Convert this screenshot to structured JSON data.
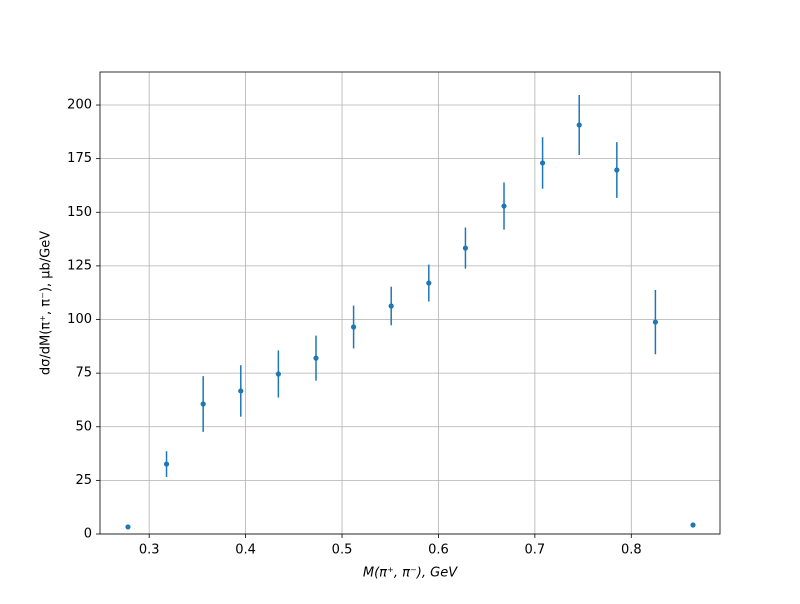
{
  "chart_data": {
    "type": "errorbar",
    "xlabel": "M(π⁺, π⁻), GeV",
    "ylabel": "dσ/dM(π⁺, π⁻), μb/GeV",
    "x": [
      0.278,
      0.318,
      0.356,
      0.395,
      0.434,
      0.473,
      0.512,
      0.551,
      0.59,
      0.628,
      0.668,
      0.708,
      0.746,
      0.785,
      0.825,
      0.864
    ],
    "values": [
      3.3,
      32.6,
      60.6,
      66.7,
      74.6,
      82,
      96.5,
      106.3,
      117,
      133.3,
      152.9,
      173,
      190.7,
      169.7,
      98.8,
      4.2
    ],
    "errors": [
      0.5,
      6,
      13,
      12,
      11,
      10.5,
      10,
      9,
      8.6,
      9.6,
      11,
      12,
      14,
      13,
      15,
      0.5
    ],
    "color": "#1f77b4",
    "xlim": [
      0.249,
      0.892
    ],
    "ylim": [
      0,
      215.4
    ],
    "xticks": [
      0.3,
      0.4,
      0.5,
      0.6,
      0.7,
      0.8
    ],
    "yticks": [
      0,
      25,
      50,
      75,
      100,
      125,
      150,
      175,
      200
    ],
    "grid": true
  }
}
